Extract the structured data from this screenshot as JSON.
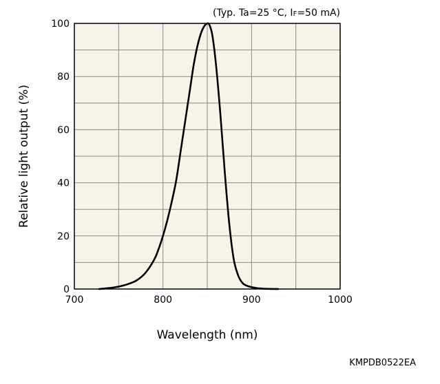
{
  "colors": {
    "plot_background": "#f5f3ea",
    "grid": "#8a8a8a",
    "curve": "#000000",
    "frame": "#000000"
  },
  "chart_data": {
    "type": "line",
    "title": "",
    "conditions": {
      "prefix": "(Typ. Ta=25 °C, I",
      "subscript": "F",
      "suffix": "=50 mA)"
    },
    "xlabel": "Wavelength (nm)",
    "ylabel": "Relative light output (%)",
    "xlim": [
      700,
      1000
    ],
    "ylim": [
      0,
      100
    ],
    "xticks": [
      700,
      800,
      900,
      1000
    ],
    "xtick_labels": [
      "700",
      "800",
      "900",
      "1000"
    ],
    "yticks": [
      0,
      20,
      40,
      60,
      80,
      100
    ],
    "ytick_labels": [
      "0",
      "20",
      "40",
      "60",
      "80",
      "100"
    ],
    "x_gridlines": [
      700,
      750,
      800,
      850,
      900,
      950,
      1000
    ],
    "y_gridlines": [
      0,
      10,
      20,
      30,
      40,
      50,
      60,
      70,
      80,
      90,
      100
    ],
    "grid": true,
    "legend": "none",
    "series": [
      {
        "x": [
          728,
          740,
          750,
          760,
          770,
          780,
          790,
          795,
          800,
          805,
          810,
          815,
          820,
          825,
          830,
          835,
          840,
          845,
          850,
          853,
          856,
          860,
          865,
          870,
          875,
          880,
          885,
          890,
          895,
          900,
          905,
          910,
          920,
          930
        ],
        "y": [
          0,
          0.4,
          0.9,
          1.8,
          3.2,
          6,
          11,
          15,
          20,
          26,
          33,
          41,
          52,
          63,
          74,
          85,
          93,
          98,
          100,
          99,
          95,
          84,
          65,
          43,
          24,
          11,
          5,
          2.2,
          1.2,
          0.7,
          0.4,
          0.2,
          0.05,
          0
        ]
      }
    ],
    "footer_code": "KMPDB0522EA"
  }
}
